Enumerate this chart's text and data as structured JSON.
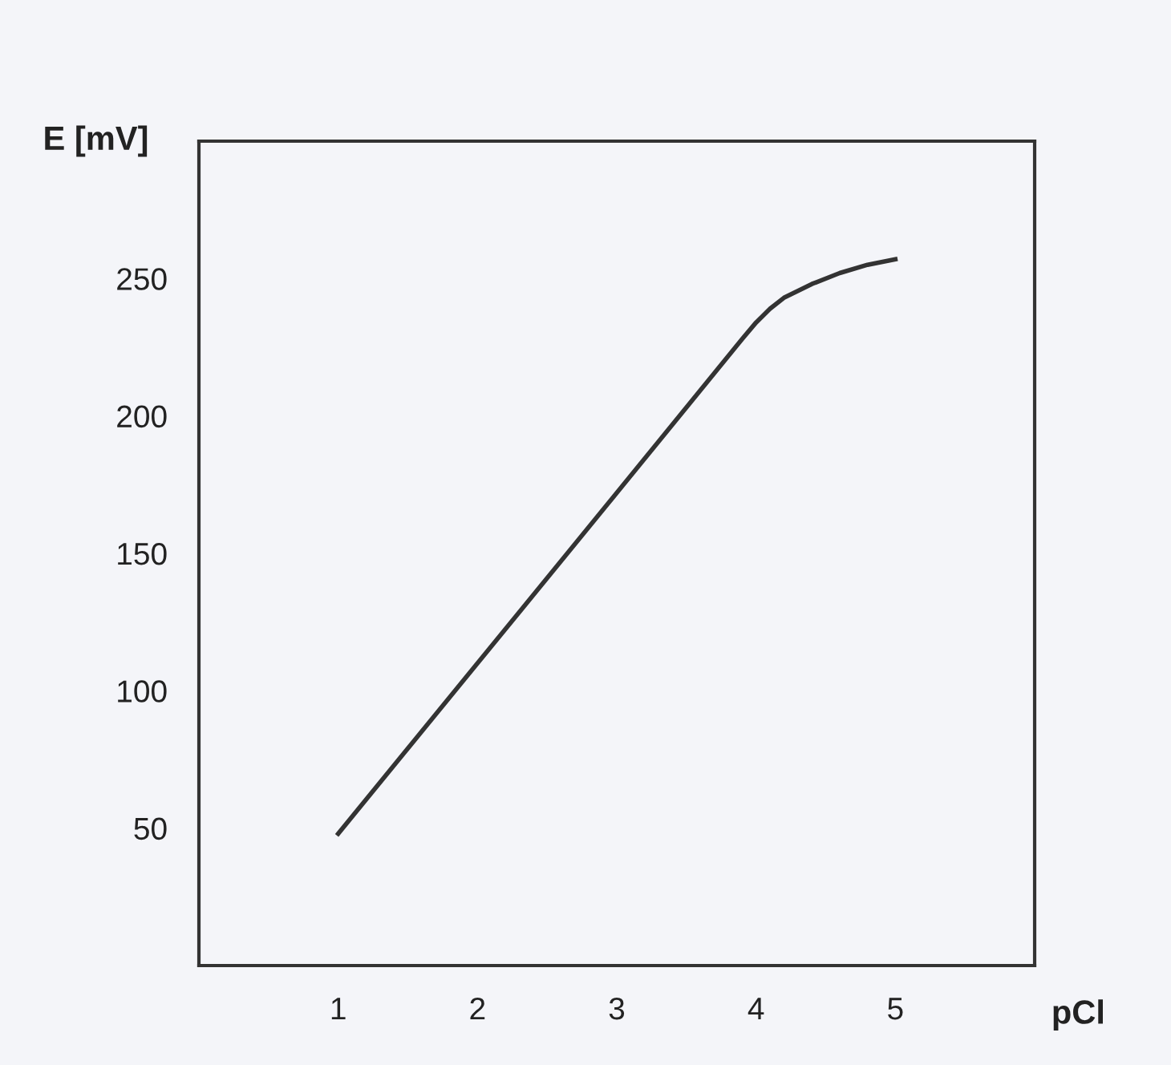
{
  "chart_data": {
    "type": "line",
    "xlabel": "pCl",
    "ylabel": "E [mV]",
    "x": [
      1,
      2,
      3,
      3.9,
      4.0,
      4.1,
      4.2,
      4.4,
      4.6,
      4.8,
      5
    ],
    "series": [
      {
        "color": "#333333",
        "values": [
          48,
          110,
          172,
          228,
          234,
          239,
          243,
          248,
          252,
          255,
          257
        ]
      }
    ],
    "xlim": [
      0,
      6
    ],
    "ylim": [
      0,
      300
    ],
    "xticks": [
      1,
      2,
      3,
      4,
      5
    ],
    "yticks": [
      50,
      100,
      150,
      200,
      250
    ],
    "grid": false,
    "legend": false,
    "marker": "none",
    "line_style": "solid"
  }
}
